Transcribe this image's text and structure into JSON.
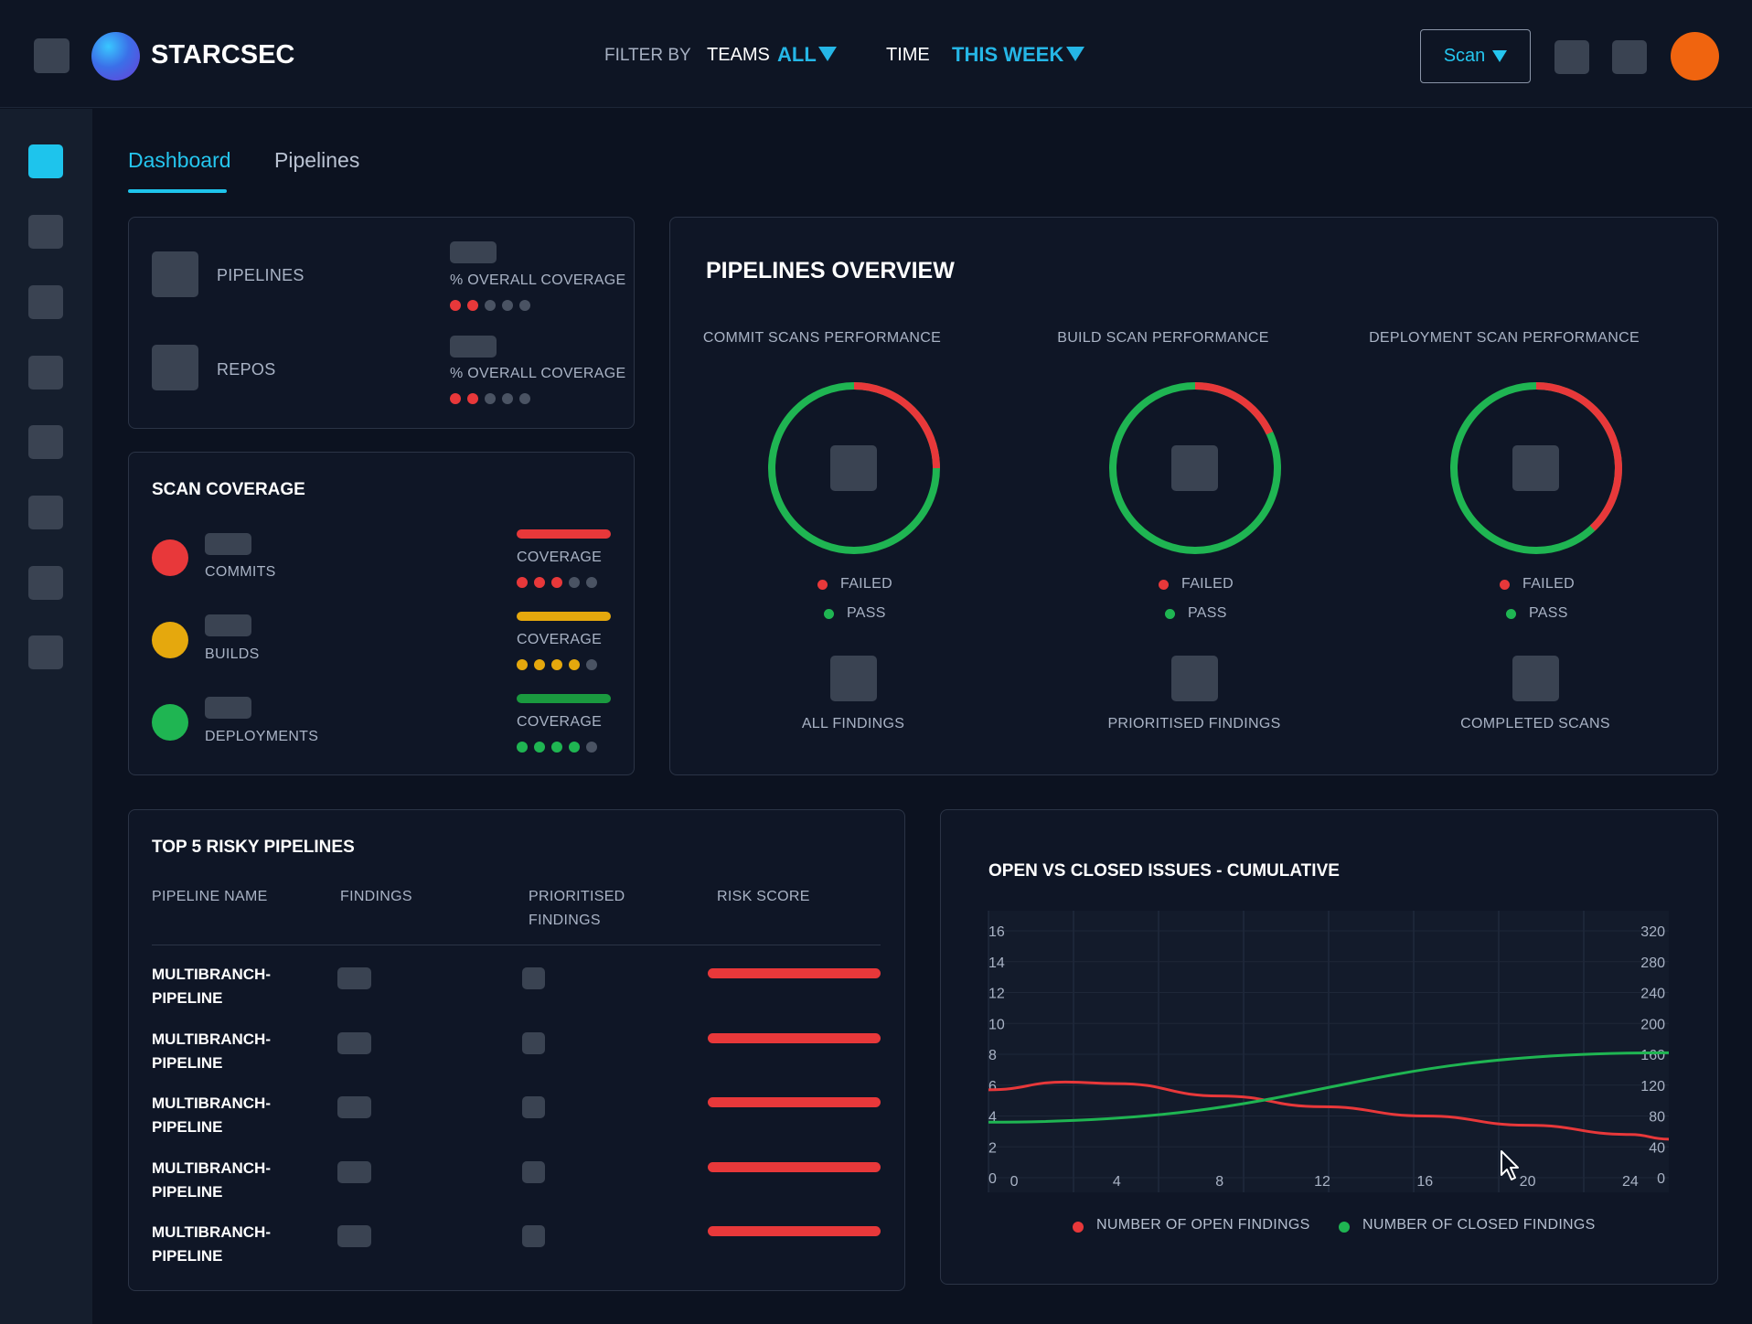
{
  "header": {
    "brand": "STARCSEC",
    "filter_by": "FILTER BY",
    "teams_label": "TEAMS",
    "teams_value": "ALL",
    "time_label": "TIME",
    "time_value": "THIS WEEK",
    "scan_label": "Scan",
    "avatar_color": "#f0640f",
    "accent_color": "#25b6e6"
  },
  "tabs": [
    {
      "label": "Dashboard",
      "active": true
    },
    {
      "label": "Pipelines",
      "active": false
    }
  ],
  "summary": {
    "pipelines_label": "PIPELINES",
    "repos_label": "REPOS",
    "coverage_label": "% OVERALL COVERAGE",
    "pipelines_coverage_dots": 2,
    "repos_coverage_dots": 2,
    "dots_total": 5
  },
  "scan_coverage": {
    "title": "SCAN COVERAGE",
    "coverage_label": "COVERAGE",
    "items": [
      {
        "label": "COMMITS",
        "color": "#e8383a",
        "filled_dots": 3
      },
      {
        "label": "BUILDS",
        "color": "#e5a80d",
        "filled_dots": 4
      },
      {
        "label": "DEPLOYMENTS",
        "color": "#1fb552",
        "filled_dots": 4
      }
    ]
  },
  "pipelines_overview": {
    "title": "PIPELINES OVERVIEW",
    "failed_label": "FAILED",
    "pass_label": "PASS",
    "charts": [
      {
        "title": "COMMIT SCANS PERFORMANCE",
        "failed_fraction": 0.25,
        "footer": "ALL FINDINGS"
      },
      {
        "title": "BUILD SCAN PERFORMANCE",
        "failed_fraction": 0.18,
        "footer": "PRIORITISED FINDINGS"
      },
      {
        "title": "DEPLOYMENT SCAN PERFORMANCE",
        "failed_fraction": 0.38,
        "footer": "COMPLETED SCANS"
      }
    ]
  },
  "risky": {
    "title": "TOP 5 RISKY PIPELINES",
    "columns": [
      "PIPELINE NAME",
      "FINDINGS",
      "PRIORITISED\nFINDINGS",
      "RISK SCORE"
    ],
    "rows": [
      {
        "name": "MULTIBRANCH-\nPIPELINE"
      },
      {
        "name": "MULTIBRANCH-\nPIPELINE"
      },
      {
        "name": "MULTIBRANCH-\nPIPELINE"
      },
      {
        "name": "MULTIBRANCH-\nPIPELINE"
      },
      {
        "name": "MULTIBRANCH-\nPIPELINE"
      }
    ]
  },
  "issues_chart": {
    "title": "OPEN VS CLOSED ISSUES - CUMULATIVE",
    "legend_open": "NUMBER OF OPEN FINDINGS",
    "legend_closed": "NUMBER OF CLOSED FINDINGS"
  },
  "chart_data": {
    "type": "line",
    "title": "OPEN VS CLOSED ISSUES - CUMULATIVE",
    "x_ticks": [
      "0",
      "4",
      "8",
      "12",
      "16",
      "20",
      "24"
    ],
    "y_left_ticks": [
      "0",
      "2",
      "4",
      "6",
      "8",
      "10",
      "12",
      "14",
      "16"
    ],
    "y_right_ticks": [
      "0",
      "40",
      "80",
      "120",
      "160",
      "200",
      "240",
      "280",
      "320"
    ],
    "xlim": [
      -1,
      25.5
    ],
    "ylim_left": [
      0,
      16
    ],
    "ylim_right": [
      0,
      320
    ],
    "series": [
      {
        "name": "NUMBER OF OPEN FINDINGS",
        "color": "#e8383a",
        "axis": "left",
        "x": [
          -1,
          2,
          4,
          8,
          12,
          16,
          20,
          24,
          25.5
        ],
        "y": [
          5.7,
          6.2,
          6.1,
          5.3,
          4.6,
          4.0,
          3.4,
          2.8,
          2.5
        ]
      },
      {
        "name": "NUMBER OF CLOSED FINDINGS",
        "color": "#1fb552",
        "axis": "left",
        "x": [
          -1,
          25.5
        ],
        "y": [
          3.6,
          8.1
        ]
      }
    ],
    "grid": true,
    "legend": "bottom"
  }
}
